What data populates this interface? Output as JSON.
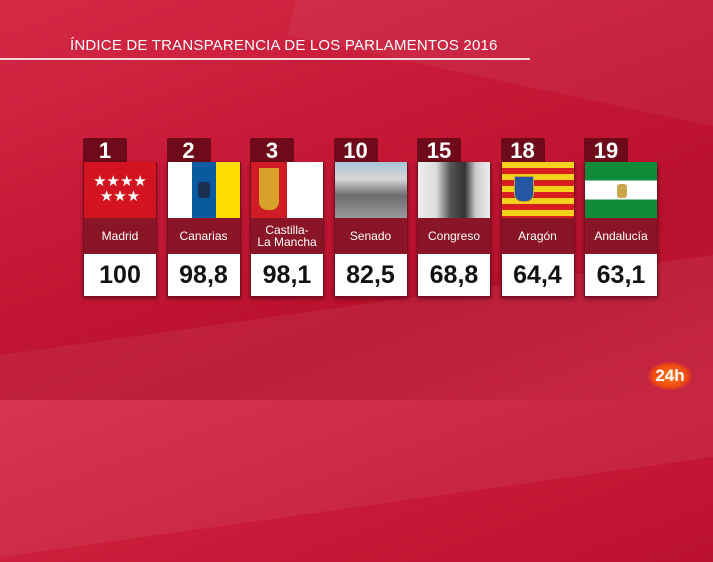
{
  "chart_data": {
    "type": "table",
    "title": "ÍNDICE DE TRANSPARENCIA DE LOS PARLAMENTOS 2016",
    "columns": [
      "rank",
      "name",
      "value"
    ],
    "rows": [
      {
        "rank": "1",
        "name": "Madrid",
        "value": "100",
        "image": "madrid-flag"
      },
      {
        "rank": "2",
        "name": "Canarias",
        "value": "98,8",
        "image": "canarias-flag"
      },
      {
        "rank": "3",
        "name": "Castilla-La Mancha",
        "value": "98,1",
        "image": "castilla-la-mancha-flag"
      },
      {
        "rank": "10",
        "name": "Senado",
        "value": "82,5",
        "image": "senado-photo"
      },
      {
        "rank": "15",
        "name": "Congreso",
        "value": "68,8",
        "image": "congreso-photo"
      },
      {
        "rank": "18",
        "name": "Aragón",
        "value": "64,4",
        "image": "aragon-flag"
      },
      {
        "rank": "19",
        "name": "Andalucía",
        "value": "63,1",
        "image": "andalucia-flag"
      }
    ]
  },
  "channel_logo": "24h",
  "colors": {
    "background": "#c81a38",
    "card": "#7a0d1f",
    "logo": "#f04a10"
  }
}
